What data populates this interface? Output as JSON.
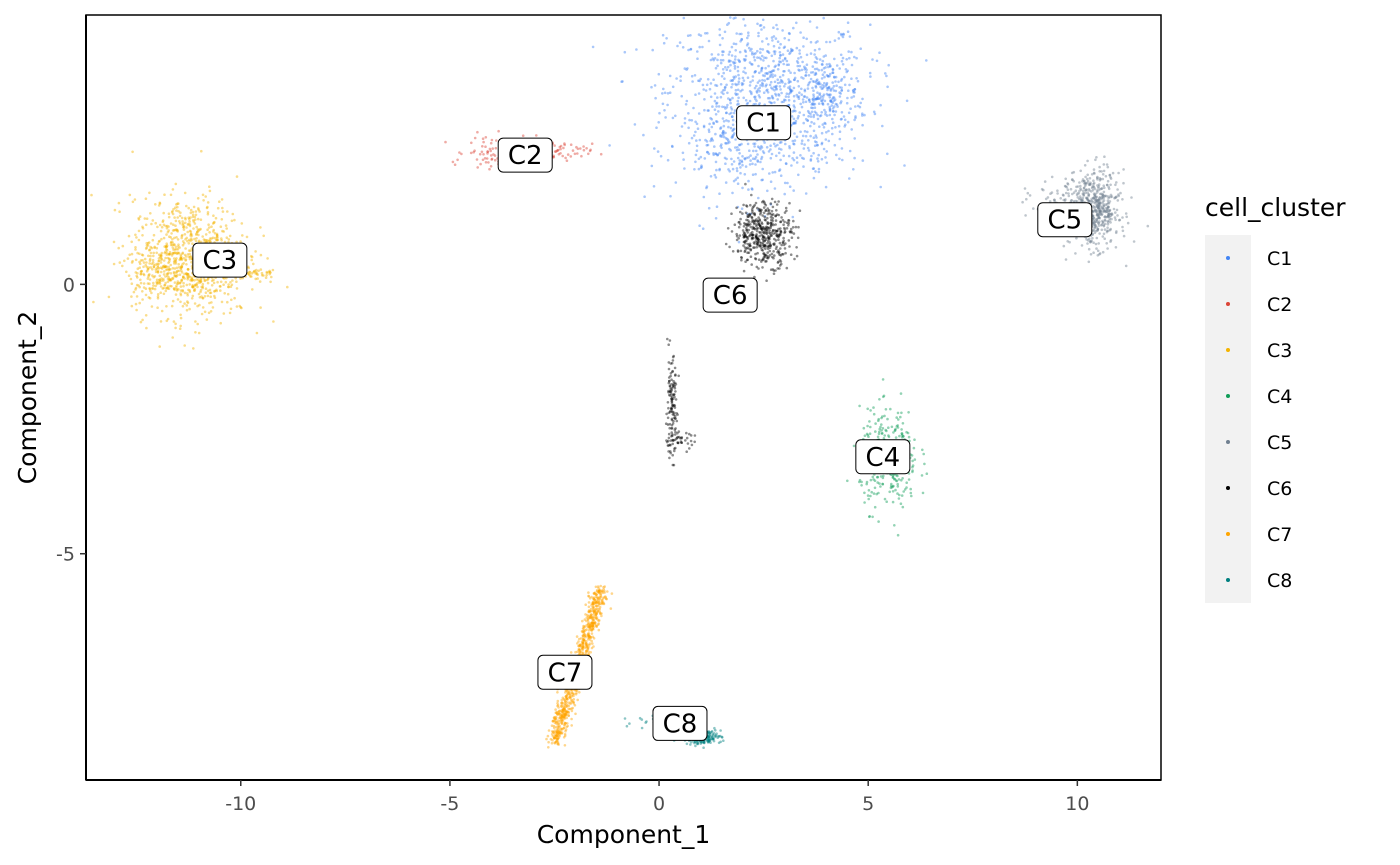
{
  "chart_data": {
    "type": "scatter",
    "xlabel": "Component_1",
    "ylabel": "Component_2",
    "xlim": [
      -13.7,
      12.0
    ],
    "ylim": [
      -9.2,
      5.0
    ],
    "x_ticks": [
      -10,
      -5,
      0,
      5,
      10
    ],
    "y_ticks": [
      -5,
      0
    ],
    "grid": false,
    "legend": {
      "title": "cell_cluster",
      "position": "right"
    },
    "series": [
      {
        "name": "C1",
        "color": "#4285F4"
      },
      {
        "name": "C2",
        "color": "#DB4437"
      },
      {
        "name": "C3",
        "color": "#F4B400"
      },
      {
        "name": "C4",
        "color": "#0F9D58"
      },
      {
        "name": "C5",
        "color": "#708090"
      },
      {
        "name": "C6",
        "color": "#000000"
      },
      {
        "name": "C7",
        "color": "#FFA500"
      },
      {
        "name": "C8",
        "color": "#008080"
      }
    ],
    "clusters": [
      {
        "name": "C1",
        "label_at": [
          2.5,
          3.0
        ],
        "blobs": [
          {
            "cx": 2.6,
            "cy": 3.6,
            "sx": 1.2,
            "sy": 0.7,
            "n": 900
          },
          {
            "cx": 4.0,
            "cy": 3.5,
            "sx": 0.4,
            "sy": 0.35,
            "n": 150
          },
          {
            "cx": 2.2,
            "cy": 2.5,
            "sx": 0.9,
            "sy": 0.5,
            "n": 300
          }
        ]
      },
      {
        "name": "C2",
        "label_at": [
          -3.2,
          2.4
        ],
        "blobs": [
          {
            "cx": -3.6,
            "cy": 2.45,
            "sx": 0.5,
            "sy": 0.15,
            "n": 180
          },
          {
            "cx": -2.3,
            "cy": 2.45,
            "sx": 0.35,
            "sy": 0.08,
            "n": 40
          }
        ]
      },
      {
        "name": "C3",
        "label_at": [
          -10.5,
          0.45
        ],
        "blobs": [
          {
            "cx": -11.2,
            "cy": 0.5,
            "sx": 0.7,
            "sy": 0.55,
            "n": 900
          },
          {
            "cx": -12.0,
            "cy": 0.2,
            "sx": 0.35,
            "sy": 0.2,
            "n": 120
          },
          {
            "cx": -9.6,
            "cy": 0.2,
            "sx": 0.2,
            "sy": 0.05,
            "n": 30
          }
        ]
      },
      {
        "name": "C4",
        "label_at": [
          5.35,
          -3.2
        ],
        "blobs": [
          {
            "cx": 5.5,
            "cy": -3.25,
            "sx": 0.35,
            "sy": 0.45,
            "n": 350
          }
        ]
      },
      {
        "name": "C5",
        "label_at": [
          9.7,
          1.2
        ],
        "blobs": [
          {
            "cx": 10.4,
            "cy": 1.4,
            "sx": 0.3,
            "sy": 0.35,
            "n": 550
          },
          {
            "cx": 9.6,
            "cy": 1.5,
            "sx": 0.4,
            "sy": 0.2,
            "n": 80
          }
        ]
      },
      {
        "name": "C6",
        "label_at": [
          1.7,
          -0.2
        ],
        "blobs": [
          {
            "cx": 2.5,
            "cy": 0.95,
            "sx": 0.35,
            "sy": 0.3,
            "n": 450
          },
          {
            "cx": 0.3,
            "cy": -2.3,
            "sx": 0.07,
            "sy": 0.45,
            "n": 120
          },
          {
            "cx": 0.45,
            "cy": -2.9,
            "sx": 0.2,
            "sy": 0.08,
            "n": 40
          }
        ]
      },
      {
        "name": "C7",
        "label_at": [
          -2.25,
          -7.2
        ],
        "line": {
          "x0": -2.5,
          "y0": -8.5,
          "x1": -1.35,
          "y1": -5.6,
          "w": 0.1,
          "n": 800
        }
      },
      {
        "name": "C8",
        "label_at": [
          0.5,
          -8.15
        ],
        "blobs": [
          {
            "cx": 1.05,
            "cy": -8.4,
            "sx": 0.22,
            "sy": 0.07,
            "n": 180
          },
          {
            "cx": 0.0,
            "cy": -8.1,
            "sx": 0.3,
            "sy": 0.08,
            "n": 25
          }
        ]
      }
    ]
  }
}
